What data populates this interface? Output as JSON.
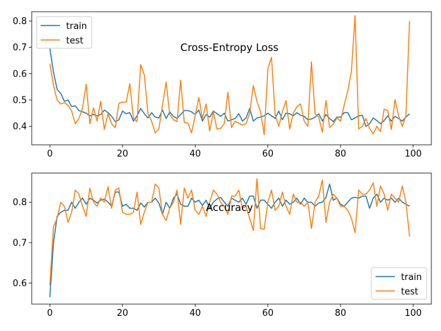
{
  "chart_data": [
    {
      "type": "line",
      "title": "Cross-Entropy Loss",
      "xlim": [
        -5,
        105
      ],
      "ylim": [
        0.33,
        0.835
      ],
      "xticks": [
        0,
        20,
        40,
        60,
        80,
        100
      ],
      "yticks": [
        0.4,
        0.5,
        0.6,
        0.7,
        0.8
      ],
      "ytick_labels": [
        "0.4",
        "0.5",
        "0.6",
        "0.7",
        "0.8"
      ],
      "legend_position": "upper-left",
      "series": [
        {
          "name": "train",
          "color": "#1f77b4",
          "values": [
            0.695,
            0.605,
            0.54,
            0.525,
            0.495,
            0.5,
            0.475,
            0.478,
            0.46,
            0.455,
            0.45,
            0.44,
            0.445,
            0.44,
            0.445,
            0.462,
            0.452,
            0.438,
            0.418,
            0.425,
            0.458,
            0.448,
            0.452,
            0.42,
            0.44,
            0.468,
            0.448,
            0.432,
            0.452,
            0.435,
            0.432,
            0.462,
            0.43,
            0.455,
            0.438,
            0.43,
            0.445,
            0.46,
            0.46,
            0.455,
            0.445,
            0.462,
            0.42,
            0.445,
            0.435,
            0.458,
            0.448,
            0.438,
            0.45,
            0.42,
            0.425,
            0.43,
            0.448,
            0.42,
            0.432,
            0.468,
            0.42,
            0.432,
            0.435,
            0.44,
            0.45,
            0.44,
            0.43,
            0.458,
            0.425,
            0.45,
            0.448,
            0.44,
            0.452,
            0.442,
            0.438,
            0.425,
            0.428,
            0.435,
            0.448,
            0.42,
            0.445,
            0.43,
            0.418,
            0.435,
            0.435,
            0.452,
            0.452,
            0.425,
            0.432,
            0.44,
            0.442,
            0.4,
            0.41,
            0.432,
            0.422,
            0.41,
            0.422,
            0.44,
            0.42,
            0.438,
            0.43,
            0.42,
            0.435,
            0.448
          ]
        },
        {
          "name": "test",
          "color": "#ff7f0e",
          "values": [
            0.638,
            0.555,
            0.5,
            0.485,
            0.49,
            0.48,
            0.458,
            0.41,
            0.43,
            0.47,
            0.56,
            0.41,
            0.47,
            0.42,
            0.495,
            0.388,
            0.448,
            0.41,
            0.395,
            0.488,
            0.492,
            0.492,
            0.562,
            0.43,
            0.418,
            0.635,
            0.595,
            0.448,
            0.42,
            0.375,
            0.39,
            0.48,
            0.568,
            0.445,
            0.425,
            0.418,
            0.575,
            0.415,
            0.412,
            0.375,
            0.44,
            0.51,
            0.43,
            0.485,
            0.382,
            0.455,
            0.39,
            0.392,
            0.41,
            0.53,
            0.395,
            0.42,
            0.412,
            0.405,
            0.41,
            0.45,
            0.555,
            0.495,
            0.455,
            0.368,
            0.618,
            0.662,
            0.445,
            0.4,
            0.455,
            0.498,
            0.39,
            0.45,
            0.475,
            0.485,
            0.42,
            0.4,
            0.645,
            0.448,
            0.435,
            0.378,
            0.498,
            0.395,
            0.41,
            0.432,
            0.42,
            0.48,
            0.535,
            0.61,
            0.82,
            0.39,
            0.4,
            0.43,
            0.392,
            0.372,
            0.4,
            0.38,
            0.465,
            0.46,
            0.388,
            0.502,
            0.44,
            0.4,
            0.44,
            0.8
          ]
        }
      ]
    },
    {
      "type": "line",
      "title": "Accuracy",
      "xlim": [
        -5,
        105
      ],
      "ylim": [
        0.548,
        0.872
      ],
      "xticks": [
        0,
        20,
        40,
        60,
        80,
        100
      ],
      "yticks": [
        0.6,
        0.7,
        0.8
      ],
      "ytick_labels": [
        "0.6",
        "0.7",
        "0.8"
      ],
      "legend_position": "lower-right",
      "series": [
        {
          "name": "train",
          "color": "#1f77b4",
          "values": [
            0.565,
            0.7,
            0.765,
            0.775,
            0.78,
            0.78,
            0.8,
            0.785,
            0.8,
            0.81,
            0.795,
            0.81,
            0.805,
            0.798,
            0.805,
            0.808,
            0.8,
            0.79,
            0.825,
            0.825,
            0.79,
            0.795,
            0.785,
            0.785,
            0.78,
            0.798,
            0.788,
            0.8,
            0.8,
            0.81,
            0.798,
            0.77,
            0.8,
            0.785,
            0.81,
            0.82,
            0.795,
            0.79,
            0.79,
            0.81,
            0.8,
            0.805,
            0.792,
            0.805,
            0.785,
            0.8,
            0.808,
            0.812,
            0.8,
            0.79,
            0.81,
            0.805,
            0.8,
            0.81,
            0.795,
            0.815,
            0.815,
            0.785,
            0.805,
            0.805,
            0.795,
            0.785,
            0.8,
            0.81,
            0.79,
            0.805,
            0.795,
            0.8,
            0.81,
            0.795,
            0.81,
            0.8,
            0.8,
            0.79,
            0.798,
            0.8,
            0.812,
            0.845,
            0.805,
            0.81,
            0.795,
            0.79,
            0.8,
            0.81,
            0.812,
            0.81,
            0.815,
            0.815,
            0.785,
            0.81,
            0.82,
            0.8,
            0.81,
            0.805,
            0.81,
            0.8,
            0.81,
            0.8,
            0.795,
            0.79
          ]
        },
        {
          "name": "test",
          "color": "#ff7f0e",
          "values": [
            0.595,
            0.74,
            0.76,
            0.8,
            0.79,
            0.75,
            0.775,
            0.83,
            0.82,
            0.79,
            0.765,
            0.835,
            0.8,
            0.79,
            0.81,
            0.8,
            0.838,
            0.785,
            0.83,
            0.835,
            0.775,
            0.77,
            0.77,
            0.775,
            0.825,
            0.745,
            0.775,
            0.8,
            0.8,
            0.845,
            0.835,
            0.77,
            0.755,
            0.785,
            0.8,
            0.83,
            0.745,
            0.835,
            0.81,
            0.83,
            0.78,
            0.77,
            0.79,
            0.765,
            0.8,
            0.83,
            0.82,
            0.8,
            0.79,
            0.77,
            0.815,
            0.815,
            0.83,
            0.785,
            0.79,
            0.76,
            0.73,
            0.858,
            0.735,
            0.733,
            0.8,
            0.83,
            0.78,
            0.79,
            0.825,
            0.79,
            0.77,
            0.82,
            0.8,
            0.8,
            0.79,
            0.8,
            0.735,
            0.8,
            0.815,
            0.855,
            0.75,
            0.8,
            0.82,
            0.81,
            0.79,
            0.79,
            0.78,
            0.76,
            0.725,
            0.83,
            0.82,
            0.82,
            0.83,
            0.848,
            0.79,
            0.84,
            0.82,
            0.78,
            0.82,
            0.81,
            0.8,
            0.84,
            0.8,
            0.715
          ]
        }
      ]
    }
  ]
}
